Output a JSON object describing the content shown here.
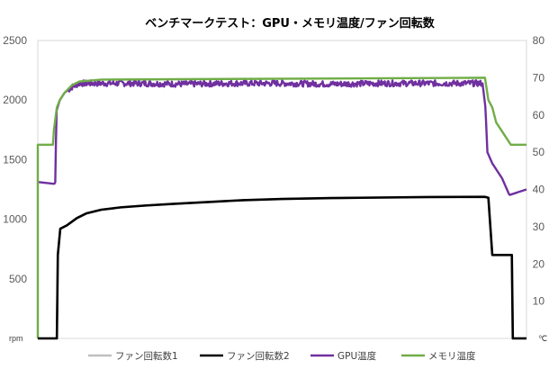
{
  "chart_data": {
    "type": "line",
    "title": "ベンチマークテスト：GPU・メモリ温度/ファン回転数",
    "xlabel": "",
    "y_left": {
      "unit_label": "rpm",
      "ylim": [
        0,
        2500
      ],
      "ticks": [
        "2500",
        "2000",
        "1500",
        "1000",
        "500"
      ]
    },
    "y_right": {
      "unit_label": "℃",
      "ylim": [
        0,
        80
      ],
      "ticks": [
        "80",
        "70",
        "60",
        "50",
        "40",
        "30",
        "20",
        "10"
      ]
    },
    "x_range": [
      0,
      100
    ],
    "grid": false,
    "legend_position": "bottom",
    "series": [
      {
        "name": "ファン回転数1",
        "axis": "left",
        "color": "#bfbfbf",
        "points": [
          [
            0,
            0
          ],
          [
            3.9,
            0
          ],
          [
            4.1,
            700
          ],
          [
            4.6,
            920
          ],
          [
            6,
            950
          ],
          [
            8,
            1010
          ],
          [
            10,
            1050
          ],
          [
            13,
            1080
          ],
          [
            17,
            1100
          ],
          [
            22,
            1115
          ],
          [
            28,
            1130
          ],
          [
            35,
            1145
          ],
          [
            42,
            1160
          ],
          [
            50,
            1170
          ],
          [
            60,
            1178
          ],
          [
            70,
            1182
          ],
          [
            80,
            1186
          ],
          [
            91.5,
            1188
          ],
          [
            92.2,
            1180
          ],
          [
            93,
            700
          ],
          [
            97,
            700
          ],
          [
            97.2,
            0
          ],
          [
            100,
            0
          ]
        ]
      },
      {
        "name": "ファン回転数2",
        "axis": "left",
        "color": "#000000",
        "points": [
          [
            0,
            0
          ],
          [
            3.9,
            0
          ],
          [
            4.1,
            700
          ],
          [
            4.6,
            920
          ],
          [
            6,
            950
          ],
          [
            8,
            1010
          ],
          [
            10,
            1050
          ],
          [
            13,
            1080
          ],
          [
            17,
            1100
          ],
          [
            22,
            1115
          ],
          [
            28,
            1130
          ],
          [
            35,
            1145
          ],
          [
            42,
            1160
          ],
          [
            50,
            1170
          ],
          [
            60,
            1178
          ],
          [
            70,
            1182
          ],
          [
            80,
            1186
          ],
          [
            91.5,
            1188
          ],
          [
            92.2,
            1180
          ],
          [
            93,
            700
          ],
          [
            97,
            700
          ],
          [
            97.2,
            0
          ],
          [
            100,
            0
          ]
        ]
      },
      {
        "name": "GPU温度",
        "axis": "right",
        "color": "#7030a0",
        "points": [
          [
            0,
            42
          ],
          [
            3.4,
            41.5
          ],
          [
            3.6,
            42
          ],
          [
            3.8,
            61
          ],
          [
            4.5,
            64
          ],
          [
            5.5,
            66
          ],
          [
            7,
            67.5
          ],
          [
            8.5,
            68.5
          ],
          [
            12,
            68.5
          ],
          [
            20,
            68.5
          ],
          [
            30,
            68.3
          ],
          [
            40,
            68.5
          ],
          [
            50,
            68.5
          ],
          [
            60,
            68.3
          ],
          [
            70,
            68.5
          ],
          [
            80,
            68.5
          ],
          [
            90,
            68.5
          ],
          [
            91,
            68.5
          ],
          [
            91.6,
            62
          ],
          [
            92,
            50
          ],
          [
            93,
            47
          ],
          [
            95,
            43
          ],
          [
            96.5,
            38.5
          ],
          [
            100,
            40
          ]
        ],
        "noise": 0.8
      },
      {
        "name": "メモリ温度",
        "axis": "right",
        "color": "#70ad47",
        "points": [
          [
            0,
            0
          ],
          [
            0,
            52
          ],
          [
            3.1,
            52
          ],
          [
            3.3,
            56
          ],
          [
            3.9,
            62
          ],
          [
            4.5,
            64
          ],
          [
            5.5,
            66
          ],
          [
            7,
            68
          ],
          [
            8.5,
            69
          ],
          [
            13,
            69.5
          ],
          [
            91.5,
            70
          ],
          [
            92.2,
            64
          ],
          [
            93,
            62
          ],
          [
            93.8,
            58
          ],
          [
            94.8,
            56
          ],
          [
            95.8,
            54
          ],
          [
            96.8,
            52
          ],
          [
            100,
            52
          ]
        ]
      }
    ]
  }
}
